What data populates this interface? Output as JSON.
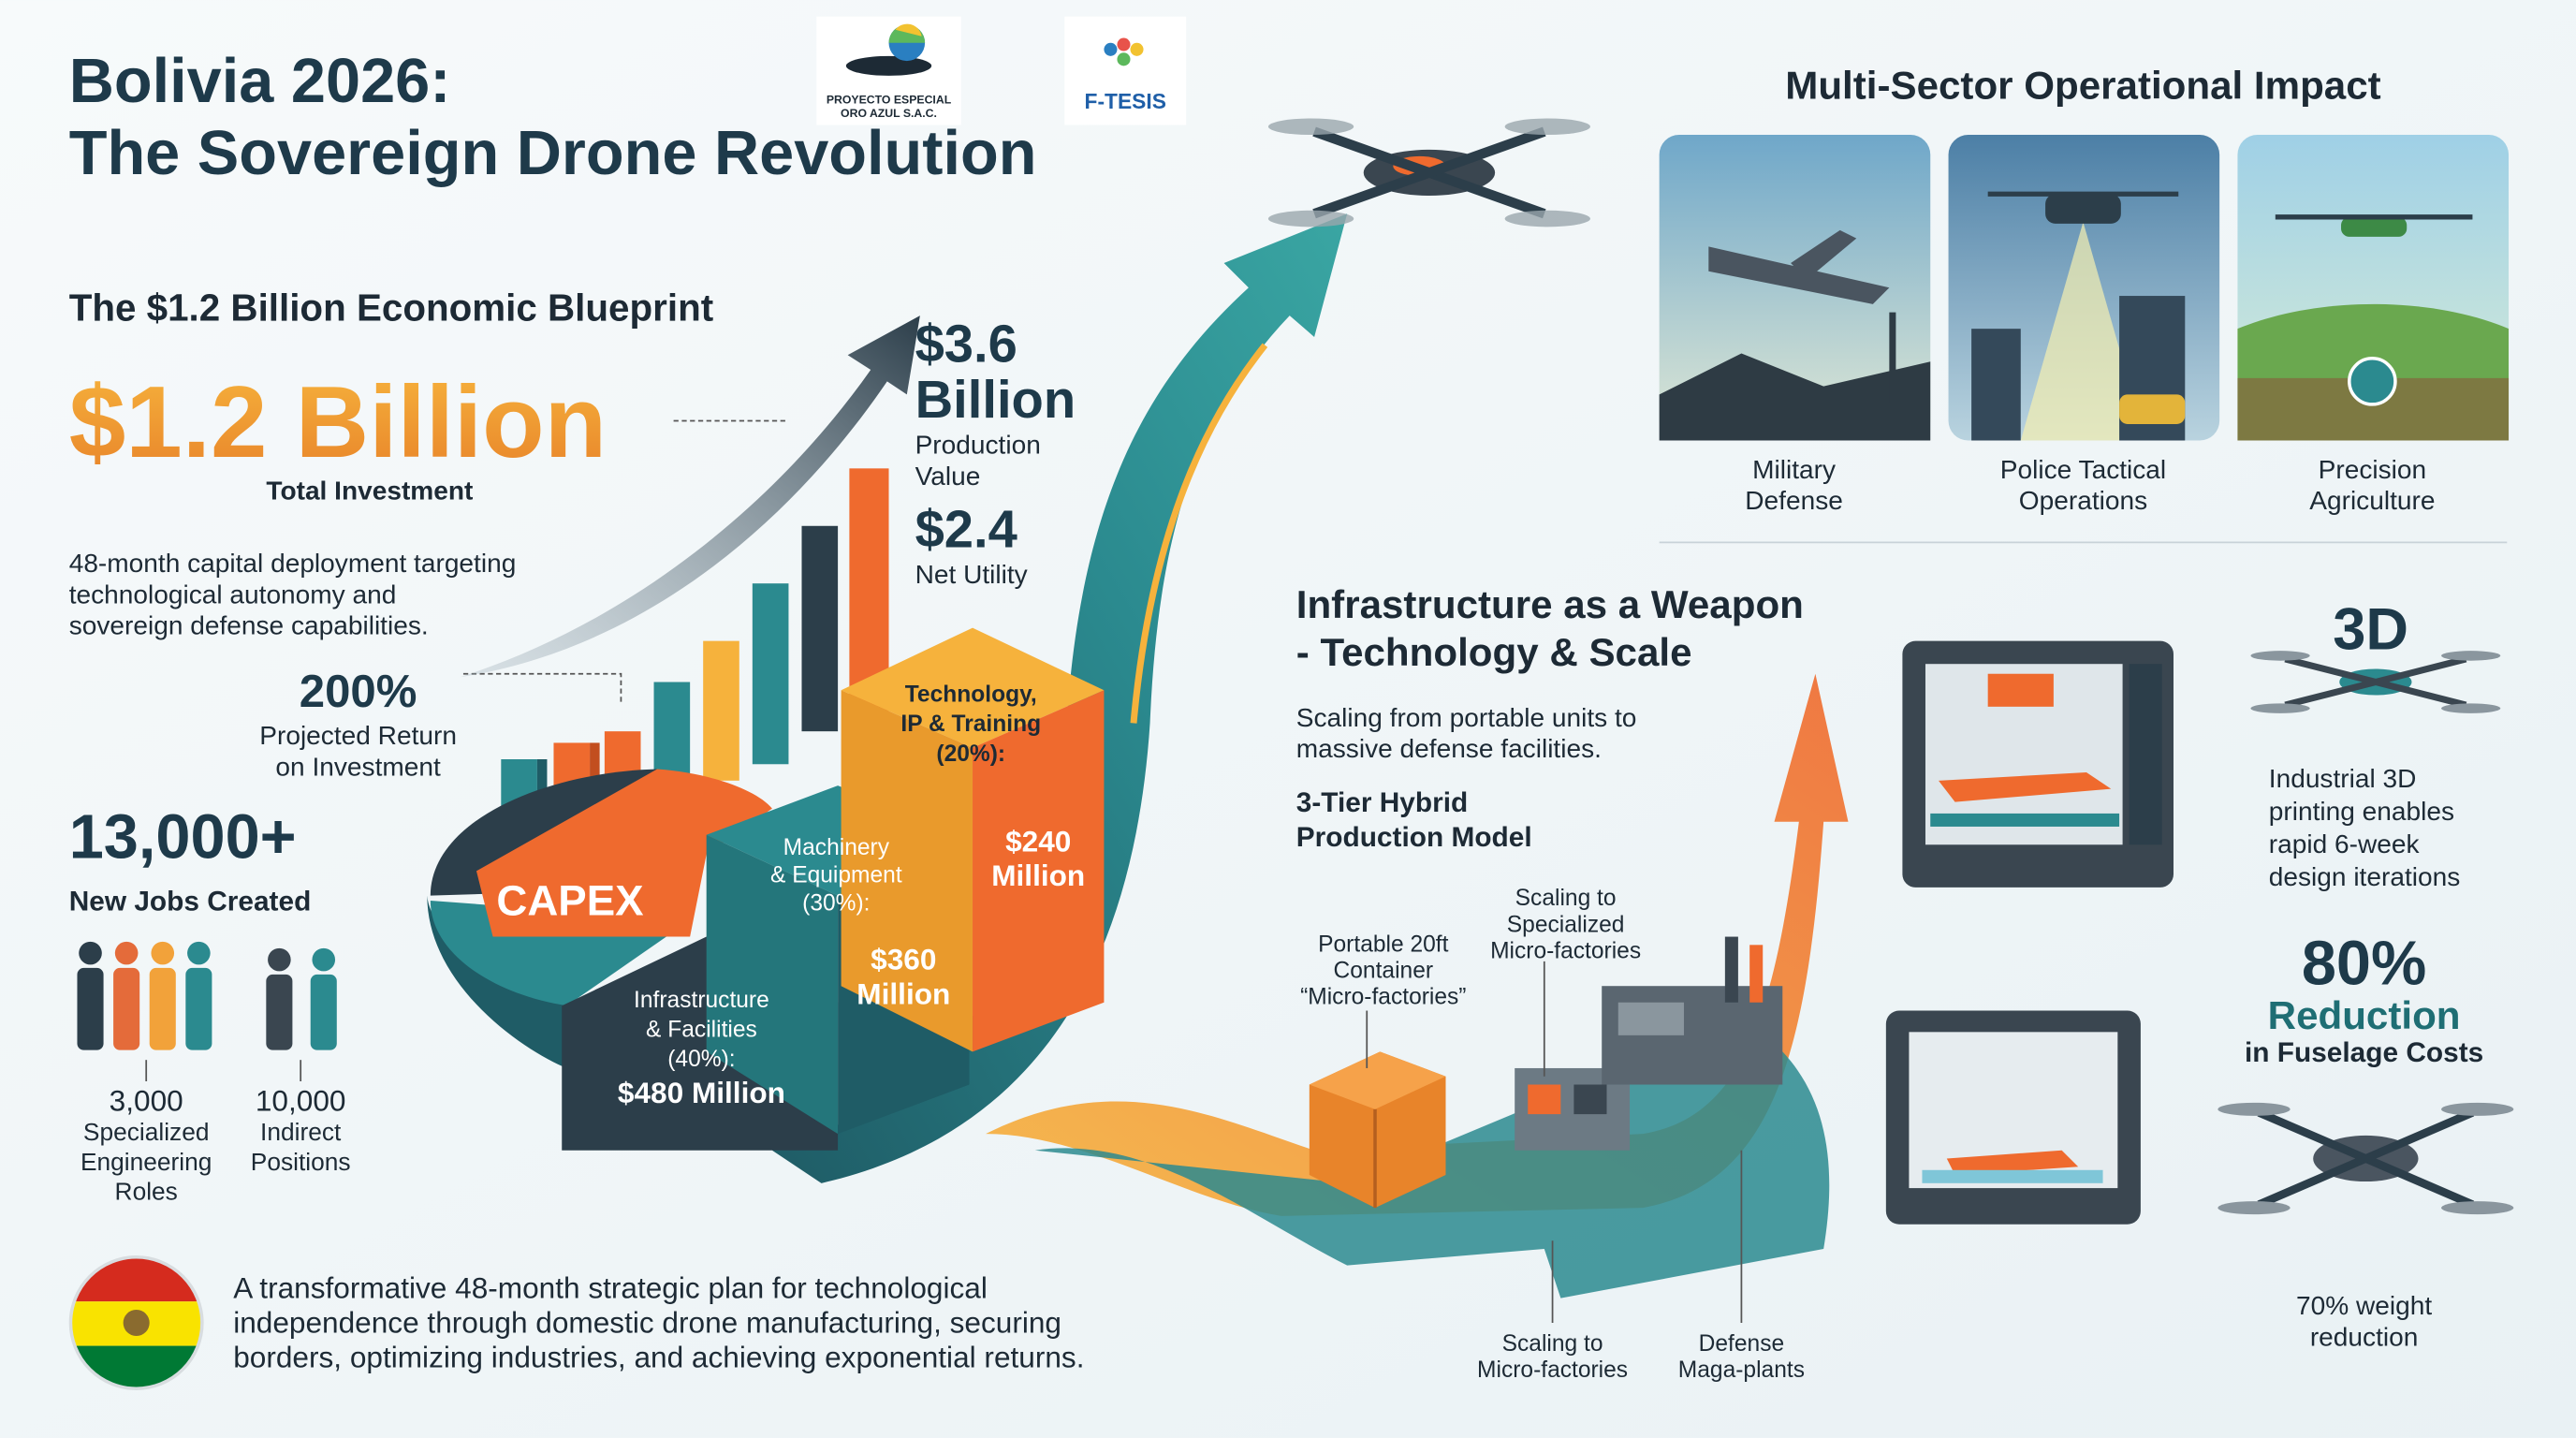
{
  "header": {
    "title": [
      "Bolivia 2026:",
      "The Sovereign Drone Revolution"
    ]
  },
  "logos": [
    {
      "lines": [
        "PROYECTO ESPECIAL",
        "ORO AZUL S.A.C."
      ]
    },
    {
      "lines": [
        "F-TESIS"
      ]
    }
  ],
  "blueprint": {
    "heading": "The $1.2 Billion Economic Blueprint",
    "investment": "$1.2 Billion",
    "investment_label": "Total Investment",
    "description": [
      "48-month capital deployment targeting",
      "technological autonomy and",
      "sovereign defense capabilities."
    ],
    "return": {
      "value": "200%",
      "label": [
        "Projected Return",
        "on Investment"
      ]
    },
    "jobs": {
      "value": "13,000+",
      "label": "New Jobs Created",
      "breakdown": [
        {
          "value": "3,000",
          "label": [
            "Specialized",
            "Engineering",
            "Roles"
          ]
        },
        {
          "value": "10,000",
          "label": [
            "Indirect",
            "Positions"
          ]
        }
      ]
    },
    "production": {
      "value": [
        "$3.6",
        "Billion"
      ],
      "value_label": [
        "Production",
        "Value"
      ],
      "utility": "$2.4",
      "utility_label": "Net Utility"
    },
    "capex": {
      "label": "CAPEX",
      "segments": [
        {
          "name": [
            "Infrastructure",
            "& Facilities",
            "(40%):"
          ],
          "amount": [
            "$480 Million"
          ]
        },
        {
          "name": [
            "Machinery",
            "& Equipment",
            "(30%):"
          ],
          "amount": [
            "$360",
            "Million"
          ]
        },
        {
          "name": [
            "Technology,",
            "IP & Training",
            "(20%):"
          ],
          "amount": [
            "$240",
            "Million"
          ]
        }
      ]
    },
    "summary": [
      "A transformative 48-month strategic plan for technological",
      "independence through domestic drone manufacturing, securing",
      "borders, optimizing industries, and achieving exponential returns."
    ]
  },
  "sectors": {
    "title": "Multi-Sector Operational Impact",
    "items": [
      {
        "label": [
          "Military",
          "Defense"
        ]
      },
      {
        "label": [
          "Police Tactical",
          "Operations"
        ]
      },
      {
        "label": [
          "Precision",
          "Agriculture"
        ]
      }
    ]
  },
  "infrastructure": {
    "title": [
      "Infrastructure as a Weapon",
      "- Technology & Scale"
    ],
    "description": [
      "Scaling from portable units to",
      "massive defense facilities."
    ],
    "model": [
      "3-Tier Hybrid",
      "Production Model"
    ],
    "callouts": [
      {
        "label": [
          "Portable 20ft",
          "Container",
          "“Micro-factories”"
        ]
      },
      {
        "label": [
          "Scaling to",
          "Specialized",
          "Micro-factories"
        ]
      },
      {
        "label": [
          "Scaling to",
          "Micro-factories"
        ]
      },
      {
        "label": [
          "Defense",
          "Maga-plants"
        ]
      }
    ]
  },
  "features": [
    {
      "value": "3D",
      "text": [
        "Industrial 3D",
        "printing enables",
        "rapid 6-week",
        "design iterations"
      ]
    },
    {
      "value": "80%",
      "headline": "Reduction",
      "subline": "in Fuselage Costs"
    },
    {
      "text": [
        "70% weight",
        "reduction"
      ]
    }
  ]
}
